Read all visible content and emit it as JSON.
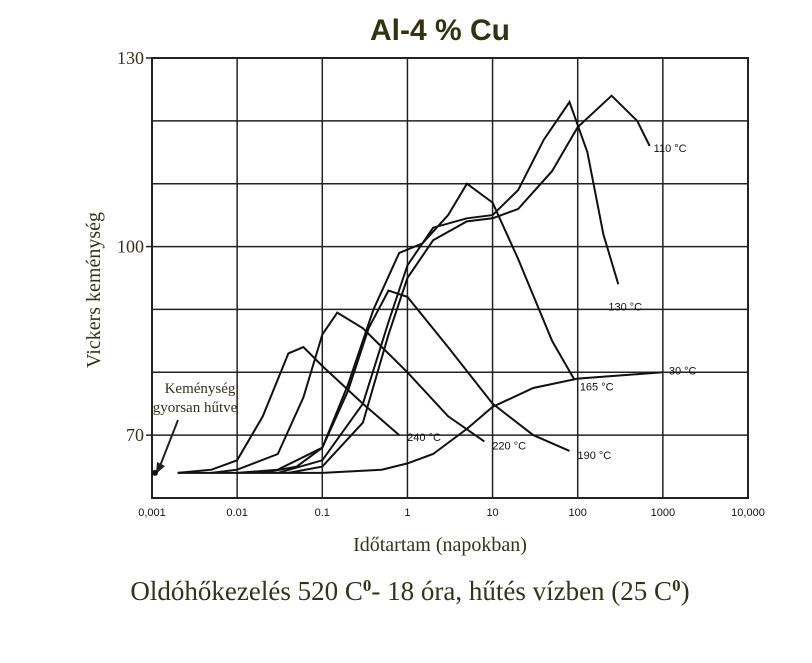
{
  "chart_data": {
    "type": "line",
    "title": "Al-4 % Cu",
    "y_label": "Vickers keménység",
    "x_label": "Időtartam (napokban)",
    "annotation": [
      "Keménység",
      "gyorsan hűtve"
    ],
    "footer": [
      "Oldóhőkezelés 520 C",
      "0",
      "- 18 óra, hűtés vízben (25 C",
      "0",
      ")"
    ],
    "x_log": true,
    "xlim": [
      0.001,
      10000
    ],
    "xticks": [
      {
        "value": 0.001,
        "label": "0,001"
      },
      0.01,
      0.1,
      1,
      10,
      100,
      1000,
      {
        "value": 10000,
        "label": "10,000"
      }
    ],
    "ylim": [
      60,
      130
    ],
    "yticks": [
      70,
      100,
      130
    ],
    "ygrid": [
      70,
      80,
      90,
      100,
      110,
      120,
      130
    ],
    "grid": true,
    "quench_point": {
      "x": 0.001,
      "value": 64
    },
    "series": [
      {
        "name": "240 °C",
        "color": "#111111",
        "x": [
          0.002,
          0.005,
          0.01,
          0.02,
          0.04,
          0.06,
          0.1,
          0.3,
          0.8
        ],
        "values": [
          64,
          64.5,
          66,
          73,
          83,
          84,
          81,
          75,
          70
        ]
      },
      {
        "name": "220 °C",
        "color": "#111111",
        "x": [
          0.005,
          0.01,
          0.03,
          0.06,
          0.1,
          0.15,
          0.3,
          1,
          3,
          8
        ],
        "values": [
          64,
          64.5,
          67,
          76,
          86,
          89.5,
          87,
          80,
          73,
          69
        ]
      },
      {
        "name": "190 °C",
        "color": "#111111",
        "x": [
          0.01,
          0.03,
          0.1,
          0.2,
          0.35,
          0.6,
          1,
          3,
          10,
          30,
          80
        ],
        "values": [
          64,
          64.5,
          68,
          77,
          87,
          93,
          92,
          84,
          75,
          70,
          67.5
        ]
      },
      {
        "name": "165 °C",
        "color": "#111111",
        "x": [
          0.02,
          0.05,
          0.1,
          0.2,
          0.4,
          0.8,
          1.5,
          3,
          5,
          10,
          20,
          50,
          90
        ],
        "values": [
          64,
          65,
          68,
          78,
          90,
          99,
          100.5,
          105,
          110,
          107,
          98,
          85,
          79
        ]
      },
      {
        "name": "130 °C",
        "color": "#111111",
        "x": [
          0.03,
          0.1,
          0.3,
          0.6,
          1,
          2,
          5,
          10,
          20,
          40,
          80,
          130,
          200,
          300
        ],
        "values": [
          64,
          66,
          75,
          88,
          97,
          103,
          104.5,
          105,
          109,
          117,
          123,
          115,
          102,
          94
        ]
      },
      {
        "name": "110 °C",
        "color": "#111111",
        "x": [
          0.04,
          0.1,
          0.3,
          0.6,
          1,
          2,
          5,
          10,
          20,
          50,
          100,
          250,
          500,
          700
        ],
        "values": [
          64,
          65,
          72,
          86,
          95,
          101,
          104,
          104.5,
          106,
          112,
          119,
          124,
          120,
          116
        ]
      },
      {
        "name": "30 °C",
        "color": "#111111",
        "x": [
          0.002,
          0.1,
          0.5,
          1,
          2,
          5,
          10,
          30,
          100,
          1000
        ],
        "values": [
          64,
          64,
          64.5,
          65.5,
          67,
          71,
          74.5,
          77.5,
          79,
          80
        ]
      }
    ]
  }
}
